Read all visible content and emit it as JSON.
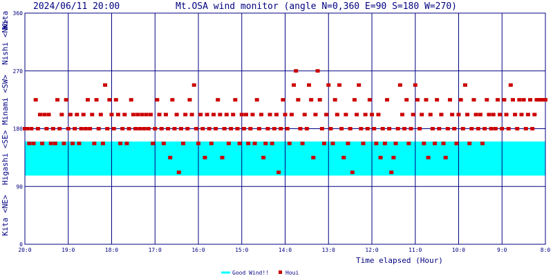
{
  "header": {
    "datetime": "2024/06/11 20:00",
    "title": "Mt.OSA wind monitor (angle N=0,360 E=90 S=180 W=270)"
  },
  "chart_data": {
    "type": "scatter",
    "xlabel": "Time elapsed (Hour)",
    "x_axis_direction": "descending",
    "xlim": [
      20,
      8
    ],
    "ylim": [
      0,
      360
    ],
    "grid": true,
    "x_tick_labels": [
      "20:0",
      "19:0",
      "18:0",
      "17:0",
      "16:0",
      "15:0",
      "14:0",
      "13:0",
      "12:0",
      "11:0",
      "10:0",
      "9:0",
      "8:0"
    ],
    "y_tick_labels": [
      "0",
      "90",
      "180",
      "270",
      "360"
    ],
    "y_direction_labels": [
      "Kita <NE>",
      "Higashi <SE>",
      "Minami <SW>",
      "Nishi <NW>",
      "Kita"
    ],
    "good_wind_band": {
      "label": "Good Wind!!",
      "from": 107,
      "to": 160,
      "color": "#00ffff"
    },
    "legend": {
      "placement": "bottom",
      "entries": [
        {
          "label": "Good Wind!!",
          "color": "#00ffff",
          "marker": "line"
        },
        {
          "label": "Houi",
          "color": "#cc0000",
          "marker": "square"
        }
      ]
    },
    "series": [
      {
        "name": "Houi",
        "color": "#cc0000",
        "points": [
          [
            20.0,
            180
          ],
          [
            19.95,
            180
          ],
          [
            19.9,
            157
          ],
          [
            19.85,
            180
          ],
          [
            19.8,
            157
          ],
          [
            19.75,
            225
          ],
          [
            19.7,
            180
          ],
          [
            19.65,
            202
          ],
          [
            19.6,
            157
          ],
          [
            19.55,
            202
          ],
          [
            19.5,
            180
          ],
          [
            19.45,
            202
          ],
          [
            19.4,
            157
          ],
          [
            19.35,
            180
          ],
          [
            19.3,
            157
          ],
          [
            19.25,
            225
          ],
          [
            19.2,
            180
          ],
          [
            19.15,
            202
          ],
          [
            19.1,
            157
          ],
          [
            19.05,
            225
          ],
          [
            19.0,
            180
          ],
          [
            18.95,
            202
          ],
          [
            18.9,
            157
          ],
          [
            18.85,
            180
          ],
          [
            18.8,
            202
          ],
          [
            18.75,
            157
          ],
          [
            18.7,
            180
          ],
          [
            18.65,
            202
          ],
          [
            18.6,
            180
          ],
          [
            18.55,
            225
          ],
          [
            18.5,
            180
          ],
          [
            18.45,
            202
          ],
          [
            18.4,
            157
          ],
          [
            18.35,
            225
          ],
          [
            18.3,
            180
          ],
          [
            18.25,
            202
          ],
          [
            18.2,
            157
          ],
          [
            18.15,
            248
          ],
          [
            18.1,
            180
          ],
          [
            18.05,
            225
          ],
          [
            18.0,
            202
          ],
          [
            17.95,
            180
          ],
          [
            17.9,
            225
          ],
          [
            17.85,
            202
          ],
          [
            17.8,
            157
          ],
          [
            17.75,
            180
          ],
          [
            17.7,
            202
          ],
          [
            17.65,
            157
          ],
          [
            17.6,
            180
          ],
          [
            17.55,
            225
          ],
          [
            17.5,
            202
          ],
          [
            17.45,
            180
          ],
          [
            17.4,
            202
          ],
          [
            17.35,
            180
          ],
          [
            17.3,
            202
          ],
          [
            17.25,
            180
          ],
          [
            17.2,
            202
          ],
          [
            17.15,
            180
          ],
          [
            17.1,
            202
          ],
          [
            17.05,
            157
          ],
          [
            17.0,
            180
          ],
          [
            16.95,
            225
          ],
          [
            16.9,
            202
          ],
          [
            16.85,
            180
          ],
          [
            16.8,
            157
          ],
          [
            16.75,
            202
          ],
          [
            16.7,
            180
          ],
          [
            16.65,
            135
          ],
          [
            16.6,
            225
          ],
          [
            16.55,
            180
          ],
          [
            16.5,
            202
          ],
          [
            16.45,
            112
          ],
          [
            16.4,
            180
          ],
          [
            16.35,
            157
          ],
          [
            16.3,
            202
          ],
          [
            16.25,
            180
          ],
          [
            16.2,
            225
          ],
          [
            16.15,
            202
          ],
          [
            16.1,
            248
          ],
          [
            16.05,
            180
          ],
          [
            16.0,
            157
          ],
          [
            15.95,
            202
          ],
          [
            15.9,
            180
          ],
          [
            15.85,
            135
          ],
          [
            15.8,
            202
          ],
          [
            15.75,
            180
          ],
          [
            15.7,
            157
          ],
          [
            15.65,
            202
          ],
          [
            15.6,
            180
          ],
          [
            15.55,
            225
          ],
          [
            15.5,
            202
          ],
          [
            15.45,
            135
          ],
          [
            15.4,
            180
          ],
          [
            15.35,
            202
          ],
          [
            15.3,
            157
          ],
          [
            15.25,
            180
          ],
          [
            15.2,
            202
          ],
          [
            15.15,
            225
          ],
          [
            15.1,
            180
          ],
          [
            15.05,
            157
          ],
          [
            15.0,
            202
          ],
          [
            14.95,
            180
          ],
          [
            14.9,
            202
          ],
          [
            14.85,
            157
          ],
          [
            14.8,
            180
          ],
          [
            14.75,
            202
          ],
          [
            14.7,
            157
          ],
          [
            14.65,
            225
          ],
          [
            14.6,
            180
          ],
          [
            14.55,
            202
          ],
          [
            14.5,
            135
          ],
          [
            14.45,
            157
          ],
          [
            14.4,
            180
          ],
          [
            14.35,
            202
          ],
          [
            14.3,
            157
          ],
          [
            14.25,
            180
          ],
          [
            14.2,
            202
          ],
          [
            14.15,
            112
          ],
          [
            14.1,
            180
          ],
          [
            14.05,
            225
          ],
          [
            14.0,
            202
          ],
          [
            13.95,
            180
          ],
          [
            13.9,
            157
          ],
          [
            13.85,
            202
          ],
          [
            13.8,
            248
          ],
          [
            13.75,
            270
          ],
          [
            13.7,
            225
          ],
          [
            13.65,
            180
          ],
          [
            13.6,
            157
          ],
          [
            13.55,
            202
          ],
          [
            13.5,
            180
          ],
          [
            13.45,
            248
          ],
          [
            13.4,
            225
          ],
          [
            13.35,
            135
          ],
          [
            13.3,
            202
          ],
          [
            13.25,
            270
          ],
          [
            13.2,
            225
          ],
          [
            13.15,
            180
          ],
          [
            13.1,
            157
          ],
          [
            13.05,
            202
          ],
          [
            13.0,
            248
          ],
          [
            12.95,
            180
          ],
          [
            12.9,
            157
          ],
          [
            12.85,
            225
          ],
          [
            12.8,
            202
          ],
          [
            12.75,
            248
          ],
          [
            12.7,
            180
          ],
          [
            12.65,
            135
          ],
          [
            12.6,
            202
          ],
          [
            12.55,
            157
          ],
          [
            12.5,
            180
          ],
          [
            12.45,
            112
          ],
          [
            12.4,
            225
          ],
          [
            12.35,
            202
          ],
          [
            12.3,
            248
          ],
          [
            12.25,
            180
          ],
          [
            12.2,
            157
          ],
          [
            12.15,
            202
          ],
          [
            12.1,
            180
          ],
          [
            12.05,
            225
          ],
          [
            12.0,
            202
          ],
          [
            11.95,
            180
          ],
          [
            11.9,
            157
          ],
          [
            11.85,
            202
          ],
          [
            11.8,
            135
          ],
          [
            11.75,
            180
          ],
          [
            11.7,
            157
          ],
          [
            11.65,
            225
          ],
          [
            11.6,
            180
          ],
          [
            11.55,
            112
          ],
          [
            11.5,
            135
          ],
          [
            11.45,
            157
          ],
          [
            11.4,
            180
          ],
          [
            11.35,
            248
          ],
          [
            11.3,
            202
          ],
          [
            11.25,
            180
          ],
          [
            11.2,
            225
          ],
          [
            11.15,
            157
          ],
          [
            11.1,
            180
          ],
          [
            11.05,
            202
          ],
          [
            11.0,
            248
          ],
          [
            10.95,
            225
          ],
          [
            10.9,
            180
          ],
          [
            10.85,
            202
          ],
          [
            10.8,
            157
          ],
          [
            10.75,
            225
          ],
          [
            10.7,
            135
          ],
          [
            10.65,
            202
          ],
          [
            10.6,
            180
          ],
          [
            10.55,
            157
          ],
          [
            10.5,
            225
          ],
          [
            10.45,
            180
          ],
          [
            10.4,
            202
          ],
          [
            10.35,
            157
          ],
          [
            10.3,
            135
          ],
          [
            10.25,
            180
          ],
          [
            10.2,
            225
          ],
          [
            10.15,
            202
          ],
          [
            10.1,
            180
          ],
          [
            10.05,
            157
          ],
          [
            10.0,
            202
          ],
          [
            9.95,
            225
          ],
          [
            9.9,
            180
          ],
          [
            9.85,
            248
          ],
          [
            9.8,
            202
          ],
          [
            9.75,
            157
          ],
          [
            9.7,
            180
          ],
          [
            9.65,
            225
          ],
          [
            9.6,
            202
          ],
          [
            9.55,
            180
          ],
          [
            9.5,
            202
          ],
          [
            9.45,
            157
          ],
          [
            9.4,
            180
          ],
          [
            9.35,
            225
          ],
          [
            9.3,
            202
          ],
          [
            9.25,
            180
          ],
          [
            9.2,
            202
          ],
          [
            9.15,
            180
          ],
          [
            9.1,
            225
          ],
          [
            9.05,
            202
          ],
          [
            9.0,
            180
          ],
          [
            8.95,
            225
          ],
          [
            8.9,
            202
          ],
          [
            8.85,
            180
          ],
          [
            8.8,
            248
          ],
          [
            8.75,
            225
          ],
          [
            8.7,
            202
          ],
          [
            8.65,
            180
          ],
          [
            8.6,
            225
          ],
          [
            8.55,
            202
          ],
          [
            8.5,
            225
          ],
          [
            8.45,
            180
          ],
          [
            8.4,
            202
          ],
          [
            8.35,
            225
          ],
          [
            8.3,
            180
          ],
          [
            8.25,
            202
          ],
          [
            8.2,
            225
          ],
          [
            8.15,
            225
          ],
          [
            8.1,
            225
          ],
          [
            8.05,
            225
          ],
          [
            8.0,
            225
          ]
        ]
      }
    ]
  }
}
